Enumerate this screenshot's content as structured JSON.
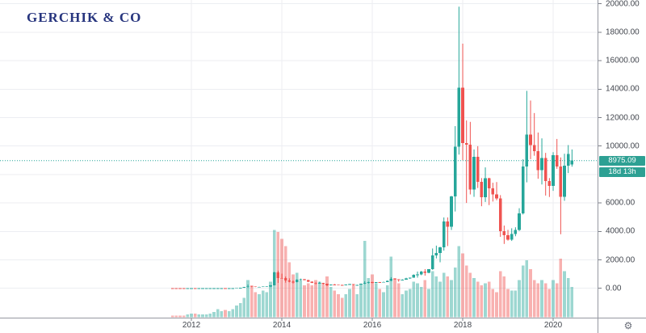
{
  "logo": {
    "text": "GERCHIK & CO"
  },
  "price_badge": {
    "value": "8975.09"
  },
  "countdown_badge": {
    "value": "18d 13h"
  },
  "settings": {
    "gear_glyph": "⚙"
  },
  "colors": {
    "background": "#ffffff",
    "up": "#26a69a",
    "down": "#ef5350",
    "vol_up": "rgba(38,166,154,0.45)",
    "vol_down": "rgba(239,83,80,0.45)",
    "price_line": "#26a69a",
    "badge_bg": "#2da093",
    "grid": "#eceef2",
    "axis_line": "#9598a1",
    "tick_mark": "#7c7f87",
    "axis_text": "#42464e",
    "logo_color": "#27357e"
  },
  "chart_data": {
    "type": "candlestick_with_volume",
    "title": "",
    "xlabel": "",
    "ylabel": "",
    "interval": "1M",
    "start_month": "2011-08",
    "grid": true,
    "current_price": 8975.09,
    "countdown": "18d 13h",
    "y_axis": {
      "tick_values": [
        20000,
        18000,
        16000,
        14000,
        12000,
        10000,
        6000,
        4000,
        2000,
        0
      ],
      "tick_labels": [
        "20000.00",
        "18000.00",
        "16000.00",
        "14000.00",
        "12000.00",
        "10000.00",
        "6000.00",
        "4000.00",
        "2000.00",
        "0.00"
      ],
      "grid_values": [
        0,
        2000,
        4000,
        6000,
        8000,
        10000,
        12000,
        14000,
        16000,
        18000,
        20000
      ],
      "visible_range": [
        -2060,
        20270
      ]
    },
    "x_axis": {
      "tick_years": [
        2012,
        2014,
        2016,
        2018,
        2020
      ],
      "tick_labels": [
        "2012",
        "2014",
        "2016",
        "2018",
        "2020"
      ]
    },
    "volume_scale_max": 100,
    "candles_format": [
      "open",
      "high",
      "low",
      "close",
      "volume"
    ],
    "candles": [
      [
        11,
        12,
        6,
        8.2,
        2
      ],
      [
        8.2,
        8.9,
        4.8,
        5.1,
        2
      ],
      [
        5.1,
        5.2,
        2,
        3.2,
        2
      ],
      [
        3.2,
        3.3,
        1.9,
        3,
        2
      ],
      [
        3,
        4.8,
        2.8,
        4.3,
        3
      ],
      [
        4.3,
        7.4,
        3.8,
        5.5,
        4
      ],
      [
        5.5,
        6.2,
        4.2,
        4.9,
        4
      ],
      [
        4.9,
        5.6,
        4.5,
        4.9,
        3
      ],
      [
        4.9,
        5.5,
        4.6,
        5.1,
        3
      ],
      [
        5.1,
        5.3,
        4.8,
        5.2,
        3
      ],
      [
        5.2,
        6.9,
        5.1,
        6.7,
        4
      ],
      [
        6.7,
        9.6,
        6.4,
        9.4,
        6
      ],
      [
        9.4,
        16.4,
        7.3,
        10.2,
        9
      ],
      [
        10.2,
        12.7,
        9.6,
        12.4,
        7
      ],
      [
        12.4,
        12.9,
        10.1,
        11.2,
        8
      ],
      [
        11.2,
        12.9,
        10.2,
        12.6,
        7
      ],
      [
        12.6,
        14,
        12.4,
        13.5,
        9
      ],
      [
        13.5,
        21,
        13,
        20.4,
        13
      ],
      [
        20.4,
        34.5,
        19.5,
        33.4,
        16
      ],
      [
        33.4,
        97,
        33,
        93,
        22
      ],
      [
        93,
        266,
        50,
        139,
        42
      ],
      [
        139,
        146,
        79,
        128,
        36
      ],
      [
        128,
        133,
        88,
        97,
        28
      ],
      [
        97,
        112,
        63,
        106,
        26
      ],
      [
        106,
        135,
        92,
        128,
        30
      ],
      [
        128,
        147,
        109,
        133,
        28
      ],
      [
        133,
        230,
        82,
        204,
        40
      ],
      [
        204,
        1163,
        198,
        1130,
        98
      ],
      [
        1130,
        1240,
        380,
        732,
        96
      ],
      [
        732,
        1030,
        680,
        715,
        88
      ],
      [
        715,
        830,
        400,
        550,
        80
      ],
      [
        550,
        700,
        420,
        455,
        62
      ],
      [
        455,
        550,
        340,
        445,
        48
      ],
      [
        445,
        630,
        420,
        620,
        50
      ],
      [
        620,
        680,
        540,
        640,
        42
      ],
      [
        640,
        660,
        560,
        580,
        36
      ],
      [
        580,
        600,
        440,
        480,
        38
      ],
      [
        480,
        490,
        365,
        385,
        36
      ],
      [
        385,
        420,
        275,
        340,
        42
      ],
      [
        340,
        460,
        320,
        375,
        40
      ],
      [
        375,
        385,
        280,
        318,
        38
      ],
      [
        318,
        320,
        152,
        218,
        46
      ],
      [
        218,
        265,
        200,
        254,
        34
      ],
      [
        254,
        300,
        236,
        245,
        30
      ],
      [
        245,
        262,
        210,
        236,
        26
      ],
      [
        236,
        248,
        228,
        230,
        22
      ],
      [
        230,
        268,
        220,
        263,
        26
      ],
      [
        263,
        316,
        250,
        284,
        32
      ],
      [
        284,
        288,
        198,
        230,
        36
      ],
      [
        230,
        246,
        222,
        236,
        26
      ],
      [
        236,
        334,
        235,
        314,
        36
      ],
      [
        314,
        502,
        295,
        378,
        86
      ],
      [
        378,
        468,
        340,
        430,
        44
      ],
      [
        430,
        464,
        350,
        370,
        48
      ],
      [
        370,
        440,
        365,
        437,
        38
      ],
      [
        437,
        445,
        380,
        416,
        32
      ],
      [
        416,
        470,
        410,
        448,
        28
      ],
      [
        448,
        550,
        440,
        532,
        36
      ],
      [
        532,
        780,
        510,
        670,
        68
      ],
      [
        670,
        705,
        600,
        624,
        44
      ],
      [
        624,
        630,
        465,
        575,
        38
      ],
      [
        575,
        630,
        565,
        610,
        26
      ],
      [
        610,
        740,
        600,
        700,
        30
      ],
      [
        700,
        755,
        670,
        745,
        32
      ],
      [
        745,
        980,
        740,
        963,
        40
      ],
      [
        963,
        1180,
        750,
        965,
        38
      ],
      [
        965,
        1220,
        920,
        1190,
        34
      ],
      [
        1190,
        1350,
        890,
        1080,
        42
      ],
      [
        1080,
        1350,
        1060,
        1350,
        32
      ],
      [
        1350,
        2800,
        1300,
        2300,
        52
      ],
      [
        2300,
        3000,
        2100,
        2480,
        46
      ],
      [
        2480,
        2920,
        1830,
        2875,
        40
      ],
      [
        2875,
        4980,
        2650,
        4700,
        50
      ],
      [
        4700,
        4980,
        2970,
        4340,
        46
      ],
      [
        4340,
        6500,
        4100,
        6450,
        42
      ],
      [
        6450,
        11400,
        5400,
        9950,
        56
      ],
      [
        9950,
        19800,
        9400,
        14100,
        80
      ],
      [
        14100,
        17200,
        9000,
        10200,
        72
      ],
      [
        10200,
        11800,
        6000,
        10100,
        58
      ],
      [
        10100,
        11700,
        6600,
        6930,
        50
      ],
      [
        6930,
        9760,
        6430,
        9240,
        44
      ],
      [
        9240,
        9990,
        7050,
        7490,
        40
      ],
      [
        7490,
        7750,
        5770,
        6390,
        36
      ],
      [
        6390,
        8500,
        6070,
        7730,
        38
      ],
      [
        7730,
        7770,
        5850,
        7030,
        40
      ],
      [
        7030,
        7420,
        6100,
        6600,
        32
      ],
      [
        6600,
        7470,
        6190,
        6310,
        28
      ],
      [
        6310,
        6550,
        3620,
        4020,
        52
      ],
      [
        4020,
        4410,
        3120,
        3740,
        46
      ],
      [
        3740,
        4110,
        3350,
        3430,
        32
      ],
      [
        3430,
        4220,
        3330,
        3820,
        30
      ],
      [
        3820,
        4290,
        3660,
        4100,
        30
      ],
      [
        4100,
        5630,
        4030,
        5270,
        42
      ],
      [
        5270,
        9070,
        5190,
        8560,
        58
      ],
      [
        8560,
        13880,
        7450,
        10800,
        64
      ],
      [
        10800,
        13200,
        9080,
        10080,
        54
      ],
      [
        10080,
        12320,
        9320,
        9630,
        42
      ],
      [
        9630,
        10950,
        7700,
        8310,
        38
      ],
      [
        8310,
        10540,
        7300,
        9150,
        42
      ],
      [
        9150,
        9520,
        6520,
        7550,
        38
      ],
      [
        7550,
        7750,
        6420,
        7200,
        32
      ],
      [
        7200,
        9570,
        6850,
        9350,
        42
      ],
      [
        9350,
        10500,
        8400,
        8550,
        38
      ],
      [
        8550,
        9200,
        3800,
        6440,
        66
      ],
      [
        6440,
        9460,
        6150,
        8630,
        52
      ],
      [
        8630,
        10070,
        8100,
        9450,
        44
      ],
      [
        8700,
        9760,
        8550,
        8975.09,
        34
      ]
    ]
  }
}
